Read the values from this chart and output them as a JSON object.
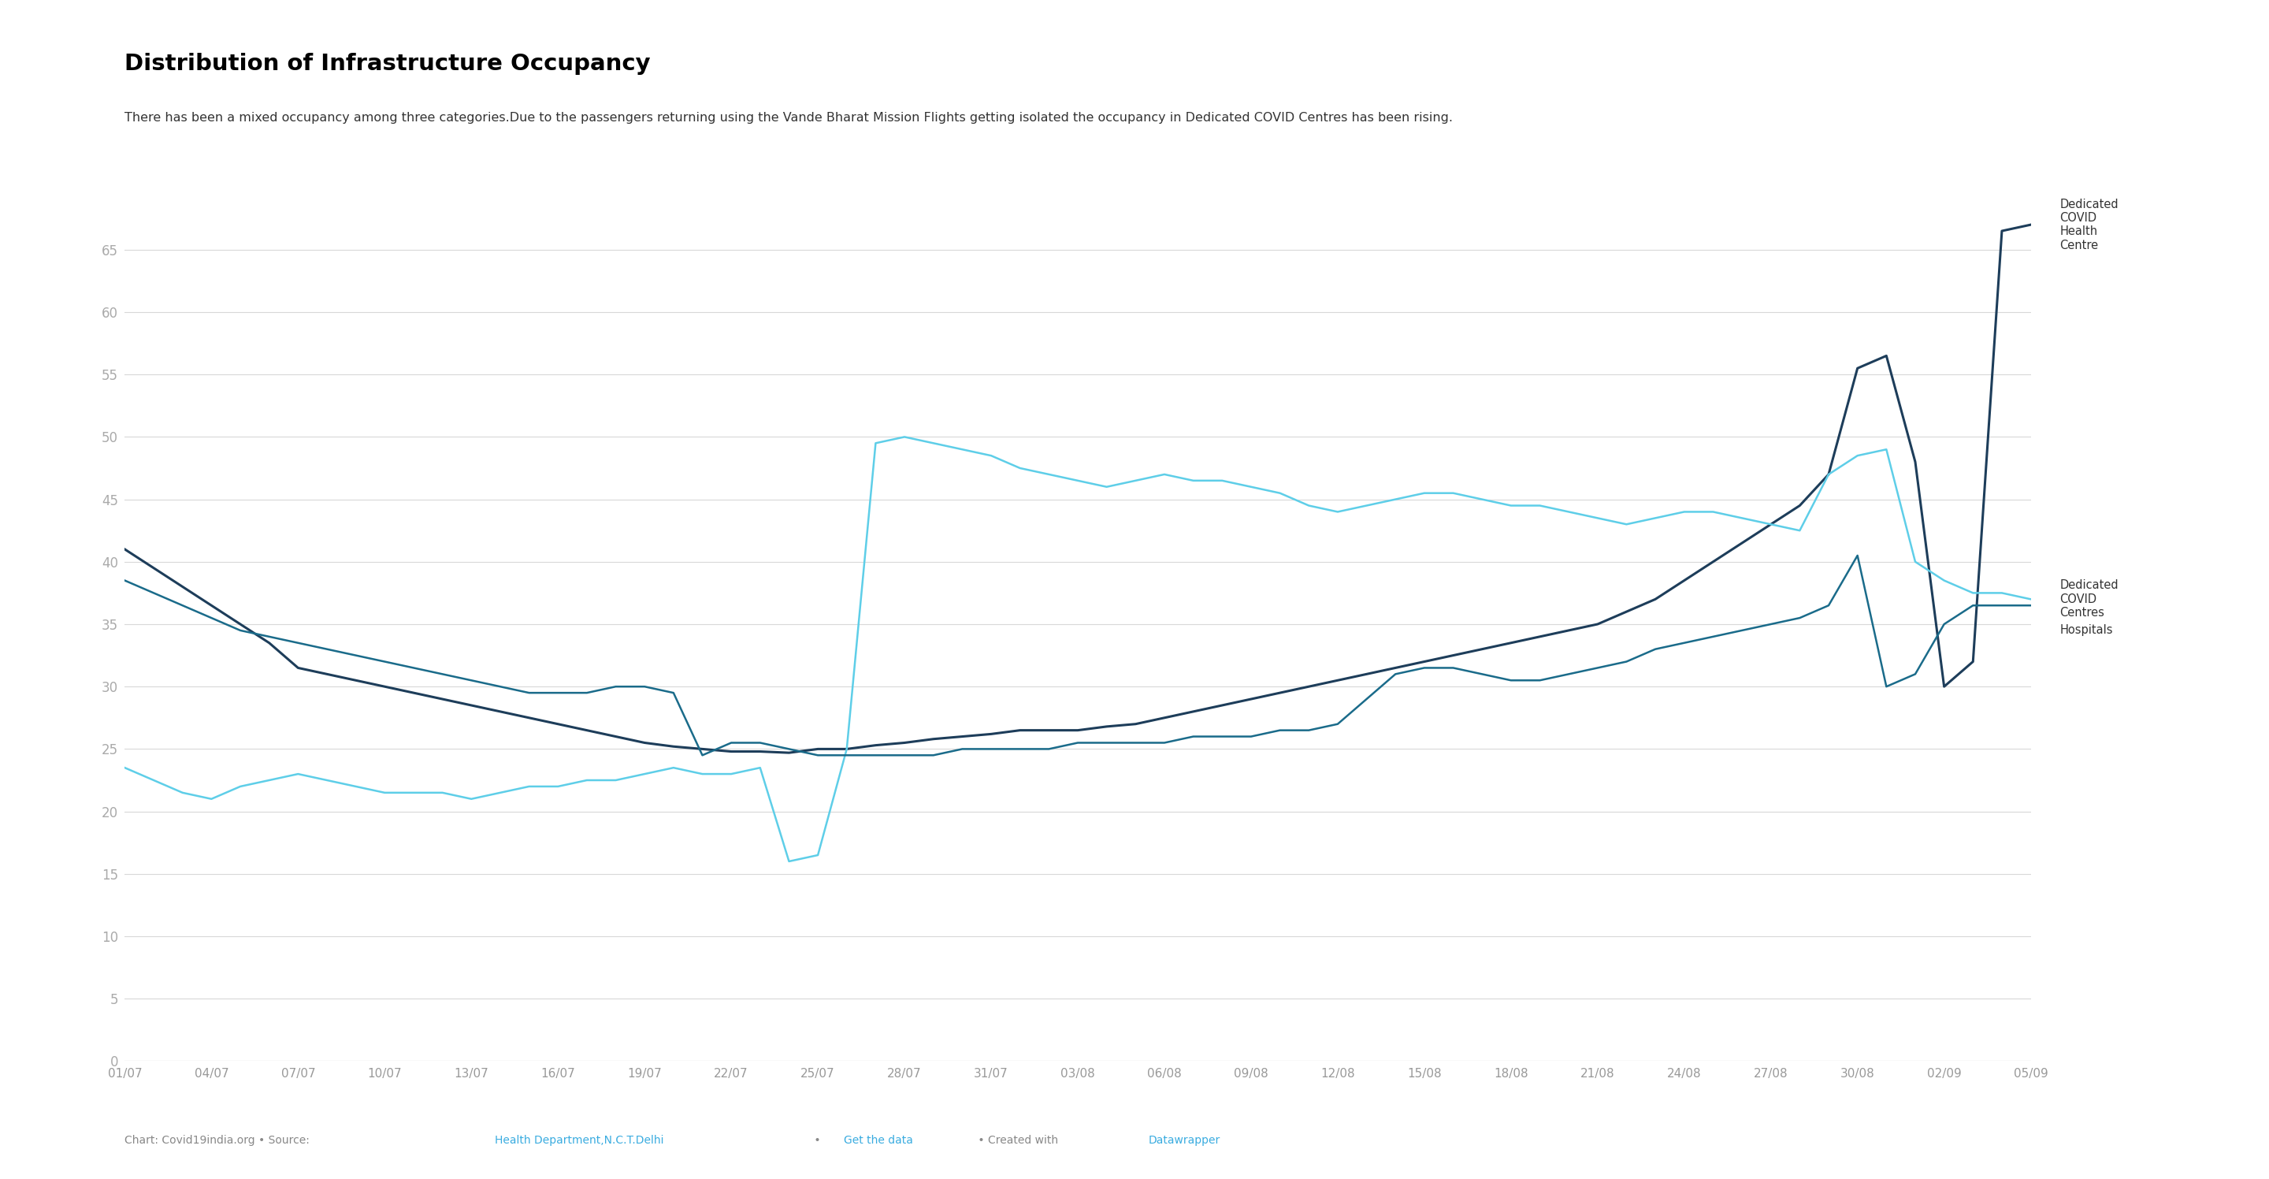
{
  "title": "Distribution of Infrastructure Occupancy",
  "subtitle": "There has been a mixed occupancy among three categories.Due to the passengers returning using the Vande Bharat Mission Flights getting isolated the occupancy in Dedicated COVID Centres has been rising.",
  "background_color": "#ffffff",
  "grid_color": "#d8d8d8",
  "series": [
    {
      "name": "Dedicated\nCOVID\nHealth\nCentre",
      "color": "#1d3d5a",
      "linewidth": 2.2
    },
    {
      "name": "Dedicated\nCOVID\nCentres",
      "color": "#5ecee8",
      "linewidth": 1.8
    },
    {
      "name": "Hospitals",
      "color": "#1a6b8a",
      "linewidth": 1.8
    }
  ],
  "x_labels": [
    "01/07",
    "04/07",
    "07/07",
    "10/07",
    "13/07",
    "16/07",
    "19/07",
    "22/07",
    "25/07",
    "28/07",
    "31/07",
    "03/08",
    "06/08",
    "09/08",
    "12/08",
    "15/08",
    "18/08",
    "21/08",
    "24/08",
    "27/08",
    "30/08",
    "02/09",
    "05/09"
  ],
  "x_label_days": [
    0,
    3,
    6,
    9,
    12,
    15,
    18,
    21,
    24,
    27,
    30,
    33,
    36,
    39,
    42,
    45,
    48,
    51,
    54,
    57,
    60,
    63,
    66
  ],
  "ylim": [
    0,
    68
  ],
  "yticks": [
    0,
    5,
    10,
    15,
    20,
    25,
    30,
    35,
    40,
    45,
    50,
    55,
    60,
    65
  ],
  "total_days": 66,
  "dedicated_covid_health_centre_days": [
    0,
    1,
    2,
    3,
    4,
    5,
    6,
    7,
    8,
    9,
    10,
    11,
    12,
    13,
    14,
    15,
    16,
    17,
    18,
    19,
    20,
    21,
    22,
    23,
    24,
    25,
    26,
    27,
    28,
    29,
    30,
    31,
    32,
    33,
    34,
    35,
    36,
    37,
    38,
    39,
    40,
    41,
    42,
    43,
    44,
    45,
    46,
    47,
    48,
    49,
    50,
    51,
    52,
    53,
    54,
    55,
    56,
    57,
    58,
    59,
    60,
    61,
    62,
    63,
    64,
    65,
    66
  ],
  "dedicated_covid_health_centre": [
    41.0,
    39.5,
    38.0,
    36.5,
    35.0,
    33.5,
    31.5,
    31.0,
    30.5,
    30.0,
    29.5,
    29.0,
    28.5,
    28.0,
    27.5,
    27.0,
    26.5,
    26.0,
    25.5,
    25.2,
    25.0,
    24.8,
    24.8,
    24.7,
    25.0,
    25.0,
    25.3,
    25.5,
    25.8,
    26.0,
    26.2,
    26.5,
    26.5,
    26.5,
    26.8,
    27.0,
    27.5,
    28.0,
    28.5,
    29.0,
    29.5,
    30.0,
    30.5,
    31.0,
    31.5,
    32.0,
    32.5,
    33.0,
    33.5,
    34.0,
    34.5,
    35.0,
    36.0,
    37.0,
    38.5,
    40.0,
    41.5,
    43.0,
    44.5,
    47.0,
    55.5,
    56.5,
    48.0,
    30.0,
    32.0,
    66.5,
    67.0
  ],
  "dedicated_covid_centres_days": [
    0,
    1,
    2,
    3,
    4,
    5,
    6,
    7,
    8,
    9,
    10,
    11,
    12,
    13,
    14,
    15,
    16,
    17,
    18,
    19,
    20,
    21,
    22,
    23,
    24,
    25,
    26,
    27,
    28,
    29,
    30,
    31,
    32,
    33,
    34,
    35,
    36,
    37,
    38,
    39,
    40,
    41,
    42,
    43,
    44,
    45,
    46,
    47,
    48,
    49,
    50,
    51,
    52,
    53,
    54,
    55,
    56,
    57,
    58,
    59,
    60,
    61,
    62,
    63,
    64,
    65,
    66
  ],
  "dedicated_covid_centres": [
    23.5,
    22.5,
    21.5,
    21.0,
    22.0,
    22.5,
    23.0,
    22.5,
    22.0,
    21.5,
    21.5,
    21.5,
    21.0,
    21.5,
    22.0,
    22.0,
    22.5,
    22.5,
    23.0,
    23.5,
    23.0,
    23.0,
    23.5,
    16.0,
    16.5,
    25.0,
    49.5,
    50.0,
    49.5,
    49.0,
    48.5,
    47.5,
    47.0,
    46.5,
    46.0,
    46.5,
    47.0,
    46.5,
    46.5,
    46.0,
    45.5,
    44.5,
    44.0,
    44.5,
    45.0,
    45.5,
    45.5,
    45.0,
    44.5,
    44.5,
    44.0,
    43.5,
    43.0,
    43.5,
    44.0,
    44.0,
    43.5,
    43.0,
    42.5,
    47.0,
    48.5,
    49.0,
    40.0,
    38.5,
    37.5,
    37.5,
    37.0
  ],
  "hospitals_days": [
    0,
    1,
    2,
    3,
    4,
    5,
    6,
    7,
    8,
    9,
    10,
    11,
    12,
    13,
    14,
    15,
    16,
    17,
    18,
    19,
    20,
    21,
    22,
    23,
    24,
    25,
    26,
    27,
    28,
    29,
    30,
    31,
    32,
    33,
    34,
    35,
    36,
    37,
    38,
    39,
    40,
    41,
    42,
    43,
    44,
    45,
    46,
    47,
    48,
    49,
    50,
    51,
    52,
    53,
    54,
    55,
    56,
    57,
    58,
    59,
    60,
    61,
    62,
    63,
    64,
    65,
    66
  ],
  "hospitals": [
    38.5,
    37.5,
    36.5,
    35.5,
    34.5,
    34.0,
    33.5,
    33.0,
    32.5,
    32.0,
    31.5,
    31.0,
    30.5,
    30.0,
    29.5,
    29.5,
    29.5,
    30.0,
    30.0,
    29.5,
    24.5,
    25.5,
    25.5,
    25.0,
    24.5,
    24.5,
    24.5,
    24.5,
    24.5,
    25.0,
    25.0,
    25.0,
    25.0,
    25.5,
    25.5,
    25.5,
    25.5,
    26.0,
    26.0,
    26.0,
    26.5,
    26.5,
    27.0,
    29.0,
    31.0,
    31.5,
    31.5,
    31.0,
    30.5,
    30.5,
    31.0,
    31.5,
    32.0,
    33.0,
    33.5,
    34.0,
    34.5,
    35.0,
    35.5,
    36.5,
    40.5,
    30.0,
    31.0,
    35.0,
    36.5,
    36.5,
    36.5
  ]
}
